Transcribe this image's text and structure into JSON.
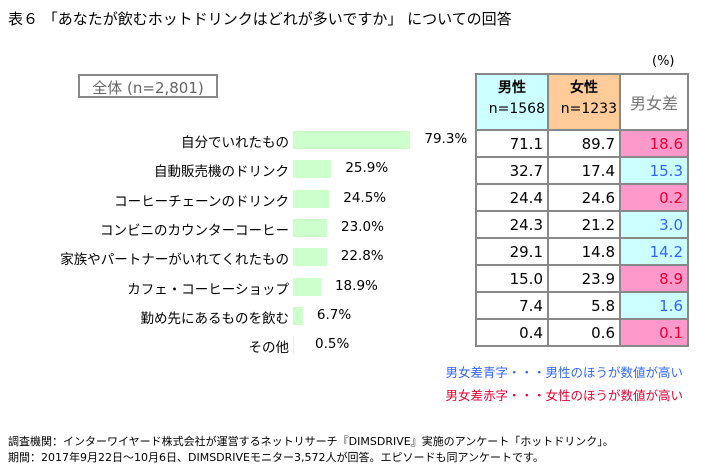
{
  "title": "表６ 「あなたが飲むホットドリンクはどれが多いですか」 についての回答",
  "unit": "(%)",
  "overall_label": "全体 (n=2,801)",
  "table_header": {
    "male": "男性",
    "male_n": "n=1568",
    "female": "女性",
    "female_n": "n=1233",
    "diff": "男女差"
  },
  "colors": {
    "male_header": "#ccffff",
    "female_header": "#ffcc99",
    "bar": "#ccffcc",
    "diff_blue_bg": "#ccffff",
    "diff_red_bg": "#ff99cc",
    "blue_text": "#3366ff",
    "red_text": "#e60033"
  },
  "chart_data": {
    "type": "bar",
    "categories": [
      "自分でいれたもの",
      "自動販売機のドリンク",
      "コーヒーチェーンのドリンク",
      "コンビニのカウンターコーヒー",
      "家族やパートナーがいれてくれたもの",
      "カフェ・コーヒーショップ",
      "勤め先にあるものを飲む",
      "その他"
    ],
    "values": [
      79.3,
      25.9,
      24.5,
      23.0,
      22.8,
      18.9,
      6.7,
      0.5
    ],
    "labels": [
      "79.3%",
      "25.9%",
      "24.5%",
      "23.0%",
      "22.8%",
      "18.9%",
      "6.7%",
      "0.5%"
    ]
  },
  "rows": [
    {
      "male": "71.1",
      "female": "89.7",
      "diff": "18.6",
      "higher": "female"
    },
    {
      "male": "32.7",
      "female": "17.4",
      "diff": "15.3",
      "higher": "male"
    },
    {
      "male": "24.4",
      "female": "24.6",
      "diff": "0.2",
      "higher": "female"
    },
    {
      "male": "24.3",
      "female": "21.2",
      "diff": "3.0",
      "higher": "male"
    },
    {
      "male": "29.1",
      "female": "14.8",
      "diff": "14.2",
      "higher": "male"
    },
    {
      "male": "15.0",
      "female": "23.9",
      "diff": "8.9",
      "higher": "female"
    },
    {
      "male": "7.4",
      "female": "5.8",
      "diff": "1.6",
      "higher": "male"
    },
    {
      "male": "0.4",
      "female": "0.6",
      "diff": "0.1",
      "higher": "female"
    }
  ],
  "notes": {
    "blue": "男女差青字・・・男性のほうが数値が高い",
    "red": "男女差赤字・・・女性のほうが数値が高い"
  },
  "footer": {
    "line1": "調査機関：インターワイヤード株式会社が運営するネットリサーチ『DIMSDRIVE』実施のアンケート「ホットドリンク」。",
    "line2": "期間：2017年9月22日～10月6日、DIMSDRIVEモニター3,572人が回答。エピソードも同アンケートです。"
  }
}
